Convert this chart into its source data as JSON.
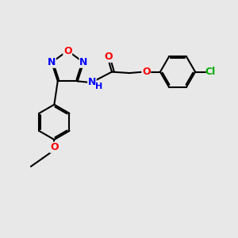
{
  "bg_color": "#e8e8e8",
  "N_color": "#0000ff",
  "O_color": "#ff0000",
  "Cl_color": "#00aa00",
  "C_color": "#000000",
  "bond_width": 1.5,
  "font_size": 9,
  "figsize": [
    3.0,
    3.0
  ],
  "dpi": 100,
  "xlim": [
    0,
    10
  ],
  "ylim": [
    0,
    10
  ]
}
